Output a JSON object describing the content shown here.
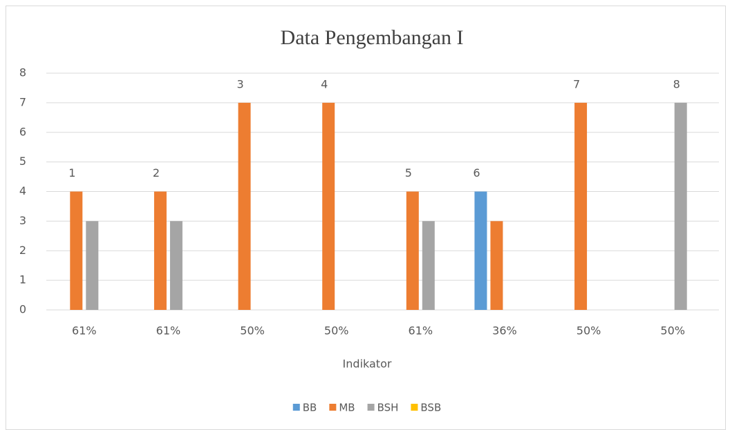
{
  "chart_data": {
    "type": "bar",
    "title": "Data Pengembangan I",
    "x_label": "Indikator",
    "categories": [
      "61%",
      "61%",
      "50%",
      "50%",
      "61%",
      "36%",
      "50%",
      "50%"
    ],
    "series": [
      {
        "name": "BB",
        "color": "#5b9bd5",
        "values": [
          0,
          0,
          0,
          0,
          0,
          4,
          0,
          0
        ]
      },
      {
        "name": "MB",
        "color": "#ed7d31",
        "values": [
          4,
          4,
          7,
          7,
          4,
          3,
          7,
          0
        ]
      },
      {
        "name": "BSH",
        "color": "#a5a5a5",
        "values": [
          3,
          3,
          0,
          0,
          3,
          0,
          0,
          7
        ]
      },
      {
        "name": "BSB",
        "color": "#ffc000",
        "values": [
          0,
          0,
          0,
          0,
          0,
          0,
          0,
          0
        ]
      }
    ],
    "annotations": [
      "1",
      "2",
      "3",
      "4",
      "5",
      "6",
      "7",
      "8"
    ],
    "ylim": [
      0,
      8
    ],
    "yticks": [
      0,
      1,
      2,
      3,
      4,
      5,
      6,
      7,
      8
    ],
    "grid": true,
    "legend": "bottom"
  }
}
